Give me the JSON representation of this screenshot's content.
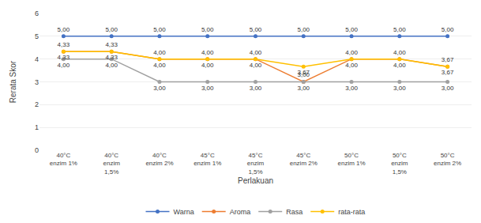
{
  "chart_data": {
    "type": "line",
    "xlabel": "Perlakuan",
    "ylabel": "Rerata Skor",
    "categories": [
      "40°C\nenzim 1%",
      "40°C\nenzim\n1,5%",
      "40°C\nenzim 2%",
      "45°C\nenzim 1%",
      "45°C\nenzim\n1,5%",
      "45°C\nenzim 2%",
      "50°C\nenzim 1%",
      "50°C\nenzim\n1,5%",
      "50°C\nenzim 2%"
    ],
    "series": [
      {
        "name": "Warna",
        "color": "#4472C4",
        "marker": "circle",
        "values": [
          5,
          5,
          5,
          5,
          5,
          5,
          5,
          5,
          5
        ],
        "value_labels": [
          "5,00",
          "5,00",
          "5,00",
          "5,00",
          "5,00",
          "5,00",
          "5,00",
          "5,00",
          "5,00"
        ]
      },
      {
        "name": "Aroma",
        "color": "#ED7D31",
        "marker": "circle",
        "values": [
          4.33,
          4.33,
          4.0,
          4.0,
          4.0,
          3.0,
          4.0,
          4.0,
          3.67
        ],
        "value_labels": [
          "4,33",
          "4,33",
          "4,00",
          "4,00",
          "4,00",
          "3,00",
          "4,00",
          "4,00",
          "3,67"
        ]
      },
      {
        "name": "Rasa",
        "color": "#A0A0A0",
        "marker": "circle",
        "values": [
          4.0,
          4.0,
          3.0,
          3.0,
          3.0,
          3.0,
          3.0,
          3.0,
          3.0
        ],
        "value_labels": [
          "4,00",
          "4,00",
          "3,00",
          "3,00",
          "3,00",
          "3,00",
          "3,00",
          "3,00",
          "3,00"
        ]
      },
      {
        "name": "rata-rata",
        "color": "#FFC000",
        "marker": "circle",
        "values": [
          4.33,
          4.33,
          4.0,
          4.0,
          4.0,
          3.67,
          4.0,
          4.0,
          3.67
        ],
        "value_labels": [
          "4,33",
          "4,33",
          "4,00",
          "4,00",
          "4,00",
          "3,67",
          "4,00",
          "4,00",
          "3,67"
        ]
      }
    ],
    "ylim": [
      0,
      6
    ],
    "yticks": [
      0,
      1,
      2,
      3,
      4,
      5,
      6
    ],
    "grid": true,
    "legend": "bottom",
    "data_labels": true
  }
}
